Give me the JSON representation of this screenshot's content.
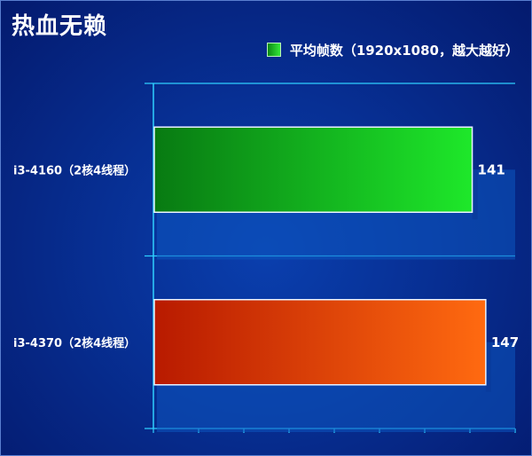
{
  "chart_data": {
    "type": "bar",
    "orientation": "horizontal",
    "title": "热血无赖",
    "categories": [
      "i3-4160（2核4线程）",
      "i3-4370（2核4线程）"
    ],
    "series": [
      {
        "name": "平均帧数（1920x1080，越大越好）",
        "values": [
          141,
          147
        ]
      }
    ],
    "bar_colors": [
      {
        "start": "#087a12",
        "end": "#1ee82a"
      },
      {
        "start": "#b81a00",
        "end": "#ff6a10"
      }
    ],
    "xlim": [
      0,
      160
    ],
    "grid": true,
    "legend_position": "top-right",
    "show_data_labels": true
  },
  "colors": {
    "background": "#072f93",
    "axis": "#2fd0ff",
    "text": "#ffffff"
  }
}
